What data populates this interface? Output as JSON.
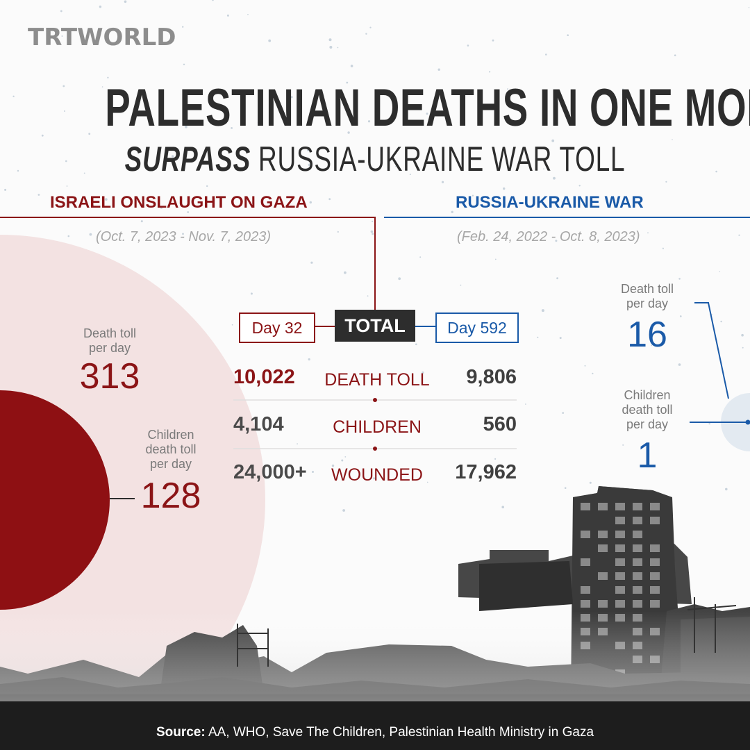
{
  "brand": {
    "logo_text": "TRTWORLD"
  },
  "header": {
    "title": "PALESTINIAN DEATHS IN ONE MONTH",
    "subtitle_emphasis": "SURPASS",
    "subtitle_rest": "RUSSIA-UKRAINE WAR TOLL"
  },
  "left": {
    "heading": "ISRAELI ONSLAUGHT ON GAZA",
    "dates": "(Oct. 7, 2023 - Nov. 7, 2023)",
    "day": "Day 32",
    "per_day_label_1": "Death toll",
    "per_day_label_2": "per day",
    "per_day_value": "313",
    "children_label_1": "Children",
    "children_label_2": "death toll",
    "children_label_3": "per day",
    "children_value": "128"
  },
  "right": {
    "heading": "RUSSIA-UKRAINE WAR",
    "dates": "(Feb. 24, 2022 - Oct. 8, 2023)",
    "day": "Day 592",
    "per_day_label_1": "Death toll",
    "per_day_label_2": "per day",
    "per_day_value": "16",
    "children_label_1": "Children",
    "children_label_2": "death toll",
    "children_label_3": "per day",
    "children_value": "1"
  },
  "total_label": "TOTAL",
  "rows": [
    {
      "left": "10,022",
      "label": "DEATH TOLL",
      "right": "9,806"
    },
    {
      "left": "4,104",
      "label": "CHILDREN",
      "right": "560"
    },
    {
      "left": "24,000+",
      "label": "WOUNDED",
      "right": "17,962"
    }
  ],
  "footer": {
    "source_label": "Source:",
    "source_text": "AA, WHO, Save The Children, Palestinian Health Ministry in Gaza"
  },
  "colors": {
    "gaza": "#8b1416",
    "ukraine": "#1a5aa8",
    "ink": "#2d2d2d",
    "circle_light": "#f3e2e2",
    "circle_dark": "#8e1013"
  }
}
